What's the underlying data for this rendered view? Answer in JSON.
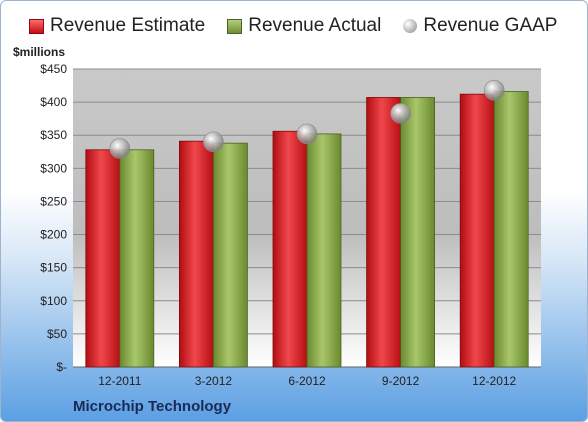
{
  "unit_label": "$millions",
  "company": "Microchip Technology",
  "legend": [
    {
      "label": "Revenue Estimate",
      "key": "estimate"
    },
    {
      "label": "Revenue Actual",
      "key": "actual"
    },
    {
      "label": "Revenue GAAP",
      "key": "gaap"
    }
  ],
  "chart_data": {
    "type": "bar",
    "categories": [
      "12-2011",
      "3-2012",
      "6-2012",
      "9-2012",
      "12-2012"
    ],
    "series": [
      {
        "name": "Revenue Estimate",
        "style": "bar",
        "color": "#d9262b",
        "values": [
          328,
          341,
          356,
          407,
          412
        ]
      },
      {
        "name": "Revenue Actual",
        "style": "bar",
        "color": "#8fb052",
        "values": [
          328,
          338,
          352,
          407,
          416
        ]
      },
      {
        "name": "Revenue GAAP",
        "style": "marker",
        "color": "#b0b0b0",
        "values": [
          330,
          340,
          352,
          383,
          418
        ]
      }
    ],
    "ylim": [
      0,
      450
    ],
    "yticks": [
      0,
      50,
      100,
      150,
      200,
      250,
      300,
      350,
      400,
      450
    ],
    "ytick_labels": [
      "$-",
      "$50",
      "$100",
      "$150",
      "$200",
      "$250",
      "$300",
      "$350",
      "$400",
      "$450"
    ],
    "grid": true,
    "legend_position": "top"
  }
}
